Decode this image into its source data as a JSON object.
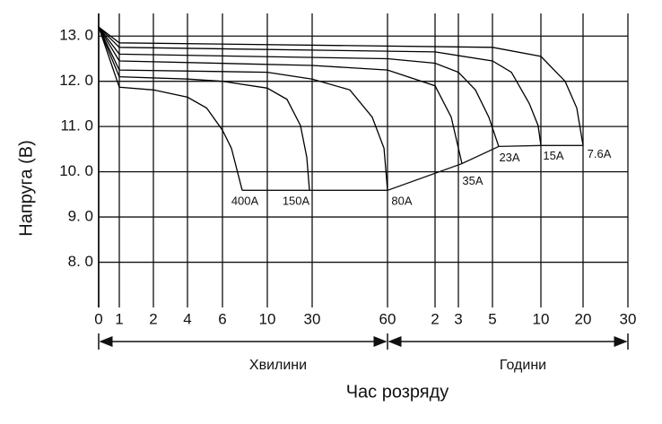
{
  "chart_data": {
    "type": "line",
    "ylabel": "Напруга (В)",
    "xlabel": "Час розряду",
    "x_groups": [
      "Хвилини",
      "Години"
    ],
    "ylim": [
      7,
      13.5
    ],
    "yticks": [
      {
        "value": 8,
        "label": "8. 0"
      },
      {
        "value": 9,
        "label": "9. 0"
      },
      {
        "value": 10,
        "label": "10. 0"
      },
      {
        "value": 11,
        "label": "11. 0"
      },
      {
        "value": 12,
        "label": "12. 0"
      },
      {
        "value": 13,
        "label": "13. 0"
      }
    ],
    "xticks": [
      0,
      1,
      2,
      4,
      6,
      10,
      30,
      60,
      {
        "value": 120,
        "label": "2"
      },
      {
        "value": 180,
        "label": "3"
      },
      {
        "value": 300,
        "label": "5"
      },
      {
        "value": 600,
        "label": "10"
      },
      {
        "value": 1200,
        "label": "20"
      },
      {
        "value": 1800,
        "label": "30"
      }
    ],
    "grid": true,
    "color": "#000000",
    "series": [
      {
        "name": "400A",
        "x": [
          0,
          1,
          2,
          4,
          5.1,
          6,
          6.8,
          7.76
        ],
        "values": [
          13.2,
          11.87,
          11.81,
          11.65,
          11.41,
          10.92,
          10.52,
          9.59
        ]
      },
      {
        "name": "150A",
        "x": [
          0,
          1,
          4,
          6,
          10,
          18.8,
          24.8,
          27.6,
          28.8
        ],
        "values": [
          13.2,
          12.1,
          12.05,
          12.0,
          11.85,
          11.6,
          11.02,
          10.32,
          9.59
        ]
      },
      {
        "name": "80A",
        "x": [
          0,
          1,
          10,
          30,
          45,
          53.9,
          58.6,
          60
        ],
        "values": [
          13.2,
          12.25,
          12.2,
          12.05,
          11.81,
          11.21,
          10.52,
          9.59
        ]
      },
      {
        "name": "35A",
        "x": [
          0,
          1,
          30,
          60,
          120,
          161.5,
          192.6
        ],
        "values": [
          13.2,
          12.45,
          12.35,
          12.25,
          11.9,
          11.21,
          10.18
        ]
      },
      {
        "name": "23A",
        "x": [
          0,
          1,
          60,
          120,
          180,
          240,
          287,
          339
        ],
        "values": [
          13.2,
          12.6,
          12.5,
          12.4,
          12.2,
          11.81,
          11.21,
          10.56
        ]
      },
      {
        "name": "15A",
        "x": [
          0,
          1,
          120,
          300,
          417,
          528,
          583,
          600
        ],
        "values": [
          13.2,
          12.75,
          12.65,
          12.45,
          12.2,
          11.51,
          11.02,
          10.58
        ]
      },
      {
        "name": "7.6A",
        "x": [
          0,
          1,
          300,
          600,
          945,
          1111,
          1200
        ],
        "values": [
          13.2,
          12.85,
          12.75,
          12.55,
          12.0,
          11.41,
          10.58
        ]
      }
    ]
  }
}
